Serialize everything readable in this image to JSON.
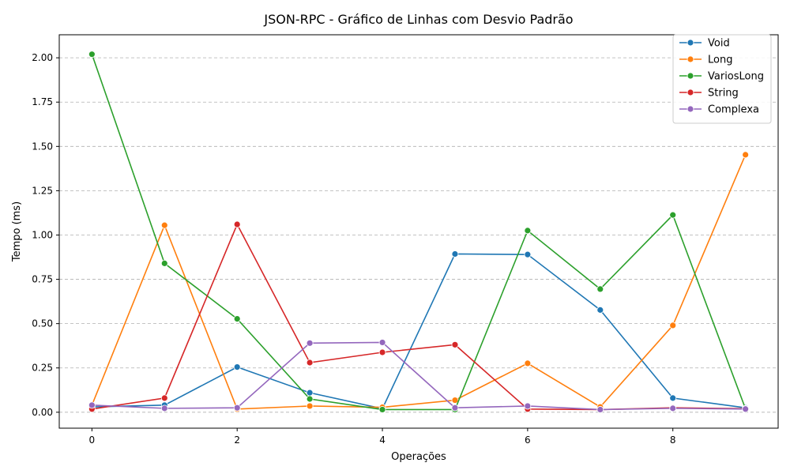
{
  "chart_data": {
    "type": "line",
    "title": "JSON-RPC - Gráfico de Linhas com Desvio Padrão",
    "xlabel": "Operações",
    "ylabel": "Tempo (ms)",
    "x": [
      0,
      1,
      2,
      3,
      4,
      5,
      6,
      7,
      8,
      9
    ],
    "xlim": [
      -0.45,
      9.45
    ],
    "ylim": [
      -0.09,
      2.13
    ],
    "xticks": [
      0,
      2,
      4,
      6,
      8
    ],
    "xtick_labels": [
      "0",
      "2",
      "4",
      "6",
      "8"
    ],
    "yticks": [
      0.0,
      0.25,
      0.5,
      0.75,
      1.0,
      1.25,
      1.5,
      1.75,
      2.0
    ],
    "ytick_labels": [
      "0.00",
      "0.25",
      "0.50",
      "0.75",
      "1.00",
      "1.25",
      "1.50",
      "1.75",
      "2.00"
    ],
    "grid": "y-dashed",
    "legend_position": "top-right",
    "series": [
      {
        "name": "Void",
        "color": "#1f77b4",
        "values": [
          0.03,
          0.04,
          0.255,
          0.11,
          0.02,
          0.893,
          0.89,
          0.577,
          0.08,
          0.025
        ]
      },
      {
        "name": "Long",
        "color": "#ff7f0e",
        "values": [
          0.04,
          1.055,
          0.018,
          0.035,
          0.028,
          0.068,
          0.276,
          0.03,
          0.49,
          1.453
        ]
      },
      {
        "name": "VariosLong",
        "color": "#2ca02c",
        "values": [
          2.02,
          0.84,
          0.527,
          0.075,
          0.015,
          0.015,
          1.025,
          0.695,
          1.113,
          0.02
        ]
      },
      {
        "name": "String",
        "color": "#d62728",
        "values": [
          0.018,
          0.08,
          1.06,
          0.28,
          0.338,
          0.381,
          0.018,
          0.015,
          0.025,
          0.02
        ]
      },
      {
        "name": "Complexa",
        "color": "#9467bd",
        "values": [
          0.04,
          0.022,
          0.025,
          0.39,
          0.394,
          0.025,
          0.035,
          0.015,
          0.022,
          0.018
        ]
      }
    ]
  }
}
